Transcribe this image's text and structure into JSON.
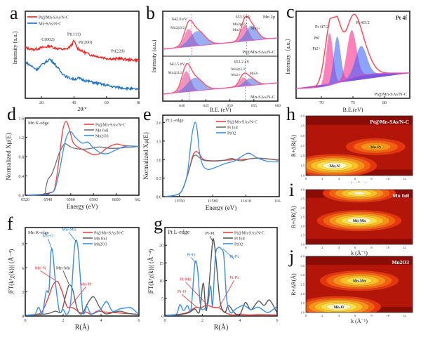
{
  "chart_data": [
    {
      "id": "a",
      "type": "line",
      "panel_label": "a",
      "title": "",
      "xlabel": "2θ/°",
      "ylabel": "Intensity (a.u.)",
      "xlim": [
        10,
        80
      ],
      "xticks": [
        20,
        40,
        60,
        80
      ],
      "grid": false,
      "legend_position": "top-left",
      "series": [
        {
          "name": "Pt@Mn-SAs/N-C",
          "color": "#ff1a1a",
          "x": [
            10,
            15,
            20,
            25,
            30,
            35,
            38,
            40,
            42,
            45,
            50,
            55,
            60,
            65,
            67,
            70,
            75,
            80
          ],
          "y": [
            0.58,
            0.56,
            0.58,
            0.6,
            0.57,
            0.56,
            0.6,
            0.66,
            0.58,
            0.54,
            0.5,
            0.48,
            0.46,
            0.45,
            0.46,
            0.45,
            0.44,
            0.44
          ]
        },
        {
          "name": "Mn-SAs/N-C",
          "color": "#1a6fc4",
          "x": [
            10,
            13,
            17,
            20,
            25,
            28,
            32,
            36,
            40,
            43,
            46,
            50,
            55,
            60,
            65,
            70,
            75,
            80
          ],
          "y": [
            0.42,
            0.38,
            0.33,
            0.38,
            0.45,
            0.4,
            0.3,
            0.24,
            0.22,
            0.23,
            0.21,
            0.19,
            0.17,
            0.15,
            0.13,
            0.12,
            0.11,
            0.1
          ]
        }
      ],
      "annotations": [
        "C(002)",
        "Pt(111)",
        "Pt(200)",
        "Pt(220)"
      ]
    },
    {
      "id": "b",
      "type": "area",
      "panel_label": "b",
      "xlabel": "B.E. (eV)",
      "ylabel": "Intensity (a.u.)",
      "xlim": [
        636,
        660
      ],
      "xticks": [
        640,
        645,
        650,
        655,
        660
      ],
      "subpanels": [
        {
          "sample": "Pt@Mn-SAs/N-C",
          "annotations": [
            "642.0 eV",
            "653.5 eV",
            "Mn2p3/2",
            "Mn2p1/2",
            "Mn2+",
            "Mn3+",
            "Mn 2p"
          ],
          "peaks_eV": [
            642.0,
            653.5
          ]
        },
        {
          "sample": "Mn-SAs/N-C",
          "annotations": [
            "641.5 eV",
            "653.2 eV",
            "Mn2p3/2",
            "Mn2p1/2",
            "Mn2+",
            "Mn3+"
          ],
          "peaks_eV": [
            641.5,
            653.2
          ]
        }
      ]
    },
    {
      "id": "c",
      "type": "area",
      "panel_label": "c",
      "xlabel": "B.E.(eV)",
      "ylabel": "Intensity（a.u.）",
      "xlim": [
        66,
        84
      ],
      "xticks": [
        70,
        75,
        80
      ],
      "sample": "Pt@Mn-SAs/N-C",
      "title": "Pt 4f",
      "annotations": [
        "Pt 4f7/2",
        "Pt 4f5/2",
        "Pt0",
        "Pt2+"
      ],
      "peaks_eV": {
        "Pt0_7/2": 71.3,
        "Pt2+_7/2": 72.5,
        "Pt0_5/2": 74.8,
        "Pt2+_5/2": 76.3
      }
    },
    {
      "id": "d",
      "type": "line",
      "panel_label": "d",
      "title": "Mn K-edge",
      "xlabel": "Energy (eV)",
      "ylabel": "Normalized Xμ(E)",
      "xlim": [
        6520,
        6620
      ],
      "ylim": [
        0,
        1.6
      ],
      "xticks": [
        6520,
        6540,
        6560,
        6580,
        6600,
        6620
      ],
      "yticks": [
        0.0,
        0.4,
        0.8,
        1.2,
        1.6
      ],
      "legend_position": "top-right",
      "series": [
        {
          "name": "Pt@Mn-SAs/N-C",
          "color": "#f04040",
          "x": [
            6520,
            6535,
            6538,
            6542,
            6546,
            6550,
            6553,
            6556,
            6559,
            6562,
            6566,
            6572,
            6580,
            6586,
            6592,
            6600,
            6606,
            6612,
            6620
          ],
          "y": [
            0,
            0.02,
            0.03,
            0.06,
            0.15,
            0.8,
            1.35,
            1.53,
            1.35,
            1.1,
            1.0,
            0.93,
            0.84,
            0.87,
            0.98,
            1.06,
            1.03,
            1.02,
            1.01
          ]
        },
        {
          "name": "Mn foil",
          "color": "#707070",
          "x": [
            6520,
            6536,
            6538,
            6540,
            6543,
            6546,
            6550,
            6554,
            6556,
            6560,
            6566,
            6575,
            6585,
            6595,
            6605,
            6620
          ],
          "y": [
            0,
            0.02,
            0.15,
            0.33,
            0.42,
            0.6,
            0.88,
            1.05,
            1.06,
            1.0,
            0.96,
            0.96,
            1.0,
            0.97,
            0.98,
            1.01
          ]
        },
        {
          "name": "Mn2O3",
          "color": "#3a8ee6",
          "x": [
            6520,
            6538,
            6542,
            6546,
            6550,
            6554,
            6557,
            6560,
            6564,
            6570,
            6575,
            6580,
            6586,
            6592,
            6598,
            6606,
            6612,
            6620
          ],
          "y": [
            0,
            0.02,
            0.05,
            0.12,
            0.5,
            1.0,
            1.25,
            1.32,
            1.2,
            1.08,
            1.1,
            0.98,
            0.88,
            0.86,
            0.92,
            1.0,
            1.02,
            1.01
          ]
        }
      ]
    },
    {
      "id": "e",
      "type": "line",
      "panel_label": "e",
      "title": "Pt L-edge",
      "xlabel": "Energy (eV)",
      "ylabel": "Normalized Xμ(E)",
      "xlim": [
        11535,
        11640
      ],
      "ylim": [
        0,
        2.2
      ],
      "xticks": [
        11550,
        11580,
        11610,
        11640
      ],
      "yticks": [
        0.0,
        0.5,
        1.0,
        1.5,
        2.0
      ],
      "legend_position": "top-right",
      "series": [
        {
          "name": "Pt@Mn-SAs/N-C",
          "color": "#f04040",
          "x": [
            11535,
            11545,
            11552,
            11558,
            11562,
            11565,
            11568,
            11572,
            11580,
            11590,
            11600,
            11610,
            11620,
            11630,
            11640
          ],
          "y": [
            0,
            0.03,
            0.15,
            0.65,
            1.1,
            1.22,
            1.15,
            1.0,
            0.97,
            0.98,
            1.0,
            1.01,
            1.04,
            1.02,
            0.99
          ]
        },
        {
          "name": "Pt foil",
          "color": "#707070",
          "x": [
            11535,
            11545,
            11552,
            11558,
            11562,
            11565,
            11568,
            11572,
            11580,
            11590,
            11597,
            11605,
            11615,
            11625,
            11640
          ],
          "y": [
            0,
            0.03,
            0.15,
            0.65,
            1.05,
            1.12,
            1.05,
            0.98,
            0.96,
            0.98,
            1.03,
            0.97,
            1.03,
            1.03,
            0.98
          ]
        },
        {
          "name": "PtO2",
          "color": "#3a8ee6",
          "x": [
            11535,
            11545,
            11552,
            11557,
            11561,
            11564,
            11566,
            11568,
            11571,
            11575,
            11580,
            11590,
            11600,
            11608,
            11613,
            11620,
            11630,
            11640
          ],
          "y": [
            0,
            0.03,
            0.15,
            0.6,
            1.6,
            2.0,
            1.8,
            1.2,
            0.85,
            0.74,
            0.76,
            0.88,
            0.97,
            1.12,
            1.17,
            1.05,
            0.95,
            0.94
          ]
        }
      ]
    },
    {
      "id": "f",
      "type": "line",
      "panel_label": "f",
      "title": "Mn K-edge",
      "xlabel": "R(Å)",
      "ylabel": "|FT(k³χ(k))| (Å⁻⁴)",
      "xlim": [
        0,
        6
      ],
      "ylim": [
        0,
        11
      ],
      "xticks": [
        0,
        2,
        4,
        6
      ],
      "yticks": [
        0,
        3,
        6,
        9
      ],
      "legend_position": "top-right",
      "annotations": [
        {
          "text": "Mn-O",
          "color": "#2b7fd4"
        },
        {
          "text": "Mn-Mn",
          "color": "#2b7fd4"
        },
        {
          "text": "Mn-N",
          "color": "#e83030"
        },
        {
          "text": "Mn-Mn",
          "color": "#333333"
        },
        {
          "text": "Mn-Pt",
          "color": "#e83030"
        }
      ],
      "series": [
        {
          "name": "Pt@Mn-SAs/N-C",
          "color": "#f04040",
          "x": [
            0,
            0.6,
            0.9,
            1.2,
            1.45,
            1.7,
            1.95,
            2.2,
            2.4,
            2.6,
            2.9,
            3.2,
            3.5,
            3.8,
            4.2,
            4.8,
            5.4,
            6
          ],
          "y": [
            0.1,
            0.2,
            0.6,
            2.2,
            3.8,
            4.3,
            3.0,
            1.2,
            1.1,
            0.9,
            0.4,
            0.5,
            0.2,
            0.6,
            0.5,
            0.4,
            0.3,
            0.2
          ]
        },
        {
          "name": "Mn foil",
          "color": "#606060",
          "x": [
            0,
            0.8,
            1.2,
            1.6,
            1.9,
            2.1,
            2.3,
            2.5,
            2.75,
            3.0,
            3.3,
            3.6,
            3.9,
            4.2,
            4.6,
            5.0,
            5.5,
            6
          ],
          "y": [
            0.1,
            0.2,
            0.3,
            0.6,
            0.5,
            2.2,
            3.8,
            3.3,
            0.8,
            0.3,
            1.6,
            2.4,
            1.2,
            0.3,
            0.4,
            0.6,
            0.3,
            0.2
          ]
        },
        {
          "name": "Mn2O3",
          "color": "#3a8ee6",
          "x": [
            0,
            0.5,
            0.7,
            0.9,
            1.1,
            1.25,
            1.35,
            1.45,
            1.6,
            1.8,
            2.0,
            2.2,
            2.4,
            2.6,
            2.75,
            2.9,
            3.05,
            3.25,
            3.45,
            3.7,
            4.0,
            4.3,
            4.6,
            5.0,
            5.3,
            5.6,
            6
          ],
          "y": [
            0.1,
            0.2,
            1.1,
            0.3,
            3.0,
            3.2,
            7.8,
            7.9,
            4.0,
            0.6,
            0.8,
            0.2,
            1.8,
            8.5,
            9.0,
            5.0,
            0.4,
            1.2,
            0.3,
            0.4,
            0.9,
            1.8,
            0.6,
            0.9,
            1.0,
            1.0,
            0.2
          ]
        }
      ]
    },
    {
      "id": "g",
      "type": "line",
      "panel_label": "g",
      "title": "Pt L-edge",
      "xlabel": "R(Å)",
      "ylabel": "|FT(k³χ(k))| (Å⁻⁴)",
      "xlim": [
        0,
        6
      ],
      "ylim": [
        0,
        25
      ],
      "xticks": [
        0,
        2,
        4,
        6
      ],
      "yticks": [
        0,
        5,
        10,
        15,
        20
      ],
      "legend_position": "top-right",
      "annotations": [
        {
          "text": "Pt-Pt",
          "color": "#333333"
        },
        {
          "text": "Pt-O",
          "color": "#2b7fd4"
        },
        {
          "text": "Pt-Pt",
          "color": "#2b7fd4"
        },
        {
          "text": "Pt-Mn",
          "color": "#e83030"
        },
        {
          "text": "Pt-O",
          "color": "#e83030"
        },
        {
          "text": "Pt-Pt",
          "color": "#e83030"
        }
      ],
      "series": [
        {
          "name": "Pt@Mn-SAs/N-C",
          "color": "#f04040",
          "x": [
            0,
            0.8,
            1.2,
            1.5,
            1.7,
            1.9,
            2.1,
            2.3,
            2.5,
            2.7,
            2.9,
            3.1,
            3.3,
            3.6,
            4.0,
            4.5,
            5.0,
            6
          ],
          "y": [
            0.2,
            0.5,
            1.0,
            2.0,
            2.5,
            2.2,
            2.8,
            3.0,
            2.6,
            2.4,
            2.3,
            1.5,
            0.8,
            0.3,
            0.5,
            0.3,
            0.4,
            0.3
          ]
        },
        {
          "name": "Pt foil",
          "color": "#555555",
          "x": [
            0,
            0.8,
            1.3,
            1.6,
            1.85,
            2.05,
            2.2,
            2.35,
            2.55,
            2.65,
            2.75,
            2.95,
            3.2,
            3.4,
            3.7,
            4.0,
            4.3,
            4.6,
            5.0,
            5.3,
            5.6,
            6
          ],
          "y": [
            0.2,
            0.4,
            1.0,
            2.0,
            1.2,
            9.3,
            1.5,
            8.0,
            21.0,
            20.0,
            15.0,
            4.0,
            1.0,
            3.0,
            1.0,
            0.3,
            3.8,
            1.8,
            4.2,
            3.0,
            4.5,
            0.8
          ]
        },
        {
          "name": "PtO2",
          "color": "#3a8ee6",
          "x": [
            0,
            0.6,
            0.8,
            1.0,
            1.2,
            1.4,
            1.6,
            1.75,
            1.9,
            2.1,
            2.3,
            2.45,
            2.55,
            2.7,
            2.85,
            3.0,
            3.15,
            3.3,
            3.5,
            3.8,
            4.2,
            4.6,
            5.0,
            5.5,
            6
          ],
          "y": [
            0.2,
            0.5,
            3.2,
            1.5,
            3.0,
            2.0,
            14.8,
            13.0,
            3.0,
            2.0,
            3.5,
            8.5,
            3.0,
            17.0,
            19.3,
            19.0,
            17.0,
            5.0,
            1.0,
            2.0,
            3.0,
            1.8,
            2.5,
            1.0,
            2.8
          ]
        }
      ]
    },
    {
      "id": "h",
      "type": "heatmap",
      "panel_label": "h",
      "title": "Pt@Mn-SAs/N-C",
      "xlabel": "k (Å⁻¹)",
      "ylabel": "R+ΔR(Å)",
      "xlim": [
        0,
        13
      ],
      "ylim": [
        1.0,
        4.0
      ],
      "xticks": [
        0,
        2,
        4,
        6,
        8,
        10,
        12
      ],
      "yticks": [
        1.0,
        1.5,
        2.0,
        2.5,
        3.0,
        3.5,
        4.0
      ],
      "maxima": [
        {
          "label": "Mn-N",
          "k": 3.5,
          "R": 1.5,
          "intensity": 1.0
        },
        {
          "label": "Mn-Pt",
          "k": 8.5,
          "R": 2.45,
          "intensity": 0.35
        }
      ]
    },
    {
      "id": "i",
      "type": "heatmap",
      "panel_label": "i",
      "title": "Mn foil",
      "xlabel": "k (Å⁻¹)",
      "ylabel": "R+ΔR(Å)",
      "xlim": [
        0,
        13
      ],
      "ylim": [
        1.0,
        4.0
      ],
      "xticks": [
        0,
        2,
        4,
        6,
        8,
        10,
        12
      ],
      "yticks": [
        1.0,
        1.5,
        2.0,
        2.5,
        3.0,
        3.5,
        4.0
      ],
      "maxima": [
        {
          "label": "Mn-Mn",
          "k": 6.5,
          "R": 2.3,
          "intensity": 1.0
        },
        {
          "label": "",
          "k": 6.5,
          "R": 3.8,
          "intensity": 0.7
        }
      ]
    },
    {
      "id": "j",
      "type": "heatmap",
      "panel_label": "j",
      "title": "Mn2O3",
      "xlabel": "k (Å⁻¹)",
      "ylabel": "R+ΔR(Å)",
      "xlim": [
        0,
        13
      ],
      "ylim": [
        1.0,
        4.0
      ],
      "xticks": [
        0,
        2,
        4,
        6,
        8,
        10,
        12
      ],
      "yticks": [
        1.0,
        1.5,
        2.0,
        2.5,
        3.0,
        3.5,
        4.0
      ],
      "maxima": [
        {
          "label": "Mn-O",
          "k": 4.0,
          "R": 1.3,
          "intensity": 1.0
        },
        {
          "label": "Mn-Mn",
          "k": 6.5,
          "R": 2.7,
          "intensity": 0.85
        }
      ]
    }
  ]
}
